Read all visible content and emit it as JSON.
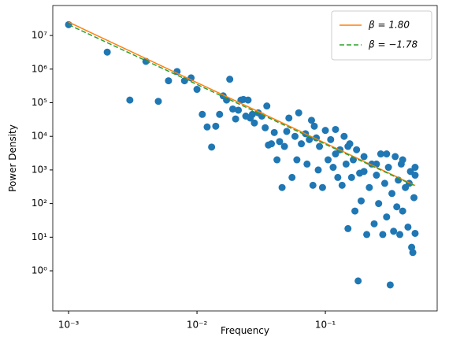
{
  "chart_data": {
    "type": "scatter",
    "xlabel": "Frequency",
    "ylabel": "Power Density",
    "xscale": "log",
    "yscale": "log",
    "xlim": [
      0.000753,
      0.743
    ],
    "ylim": [
      0.064,
      78000000
    ],
    "xticks": [
      {
        "value": 0.001,
        "label": "10⁻³"
      },
      {
        "value": 0.01,
        "label": "10⁻²"
      },
      {
        "value": 0.1,
        "label": "10⁻¹"
      }
    ],
    "yticks": [
      {
        "value": 1,
        "label": "10⁰"
      },
      {
        "value": 10,
        "label": "10¹"
      },
      {
        "value": 100,
        "label": "10²"
      },
      {
        "value": 1000,
        "label": "10³"
      },
      {
        "value": 10000,
        "label": "10⁴"
      },
      {
        "value": 100000,
        "label": "10⁵"
      },
      {
        "value": 1000000,
        "label": "10⁶"
      },
      {
        "value": 10000000,
        "label": "10⁷"
      }
    ],
    "legend": "upper right",
    "series": [
      {
        "kind": "points",
        "color": "#1f77b4",
        "x": [
          0.001,
          0.002,
          0.003,
          0.004,
          0.005,
          0.006,
          0.007,
          0.008,
          0.009,
          0.01,
          0.011,
          0.012,
          0.013,
          0.014,
          0.015,
          0.016,
          0.017,
          0.018,
          0.019,
          0.02,
          0.021,
          0.022,
          0.023,
          0.024,
          0.025,
          0.026,
          0.027,
          0.028,
          0.03,
          0.032,
          0.034,
          0.035,
          0.036,
          0.038,
          0.04,
          0.042,
          0.044,
          0.046,
          0.048,
          0.05,
          0.052,
          0.055,
          0.058,
          0.06,
          0.062,
          0.065,
          0.07,
          0.072,
          0.075,
          0.078,
          0.08,
          0.082,
          0.085,
          0.088,
          0.09,
          0.095,
          0.1,
          0.105,
          0.11,
          0.115,
          0.12,
          0.125,
          0.13,
          0.135,
          0.14,
          0.145,
          0.15,
          0.155,
          0.16,
          0.165,
          0.17,
          0.175,
          0.18,
          0.185,
          0.19,
          0.2,
          0.21,
          0.22,
          0.23,
          0.24,
          0.25,
          0.26,
          0.27,
          0.28,
          0.29,
          0.3,
          0.31,
          0.32,
          0.33,
          0.34,
          0.35,
          0.36,
          0.37,
          0.38,
          0.39,
          0.4,
          0.42,
          0.44,
          0.46,
          0.47,
          0.48,
          0.49,
          0.5,
          0.5,
          0.5,
          0.3,
          0.25,
          0.2,
          0.15,
          0.12,
          0.4,
          0.45
        ],
        "values": [
          21000000,
          3200000,
          120000,
          1700000,
          110000,
          450000,
          850000,
          450000,
          550000,
          250000,
          45000,
          19000,
          4800,
          20000,
          45000,
          160000,
          120000,
          500000,
          65000,
          33000,
          60000,
          120000,
          125000,
          40000,
          120000,
          35000,
          45000,
          25000,
          50000,
          40000,
          18000,
          80000,
          5500,
          6000,
          13000,
          2000,
          7000,
          300,
          5000,
          14000,
          35000,
          600,
          10000,
          2000,
          50000,
          6000,
          12000,
          1500,
          8000,
          30000,
          350,
          20000,
          9000,
          1000,
          5000,
          300,
          15000,
          2000,
          8000,
          1200,
          16000,
          600,
          4000,
          350,
          10000,
          1500,
          18,
          6000,
          600,
          2000,
          60,
          4000,
          0.5,
          800,
          120,
          2500,
          12,
          300,
          1500,
          25,
          700,
          100,
          3000,
          12,
          400,
          40,
          1200,
          0.38,
          200,
          15,
          2500,
          80,
          500,
          12,
          1500,
          60,
          300,
          20,
          900,
          5,
          3.5,
          150,
          1200,
          13,
          700,
          3000,
          1500,
          900,
          5000,
          3000,
          2000,
          400
        ]
      },
      {
        "kind": "line",
        "name": "β = 1.80",
        "color": "#ff7f0e",
        "dash": false,
        "x": [
          0.001,
          0.5
        ],
        "values": [
          25000000,
          345
        ]
      },
      {
        "kind": "line",
        "name": "β = −1.78",
        "color": "#2ca02c",
        "dash": true,
        "x": [
          0.001,
          0.5
        ],
        "values": [
          21000000,
          333
        ]
      }
    ]
  }
}
